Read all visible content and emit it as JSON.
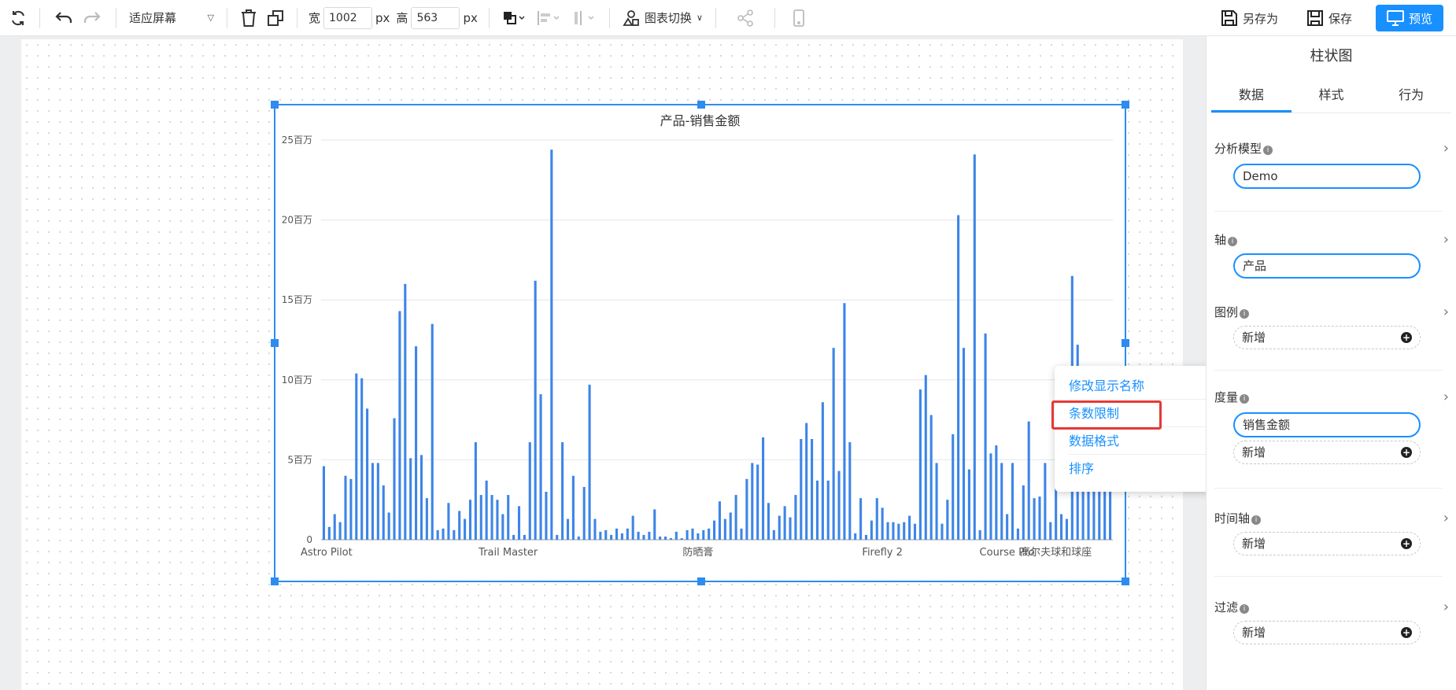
{
  "toolbar": {
    "fit_select": "适应屏幕",
    "width_label": "宽",
    "width_value": "1002",
    "px1": "px",
    "height_label": "高",
    "height_value": "563",
    "px2": "px",
    "chart_switch": "图表切换",
    "save_as": "另存为",
    "save": "保存",
    "preview": "预览"
  },
  "context_menu": {
    "items": [
      "修改显示名称",
      "条数限制",
      "数据格式",
      "排序"
    ]
  },
  "panel": {
    "title": "柱状图",
    "tabs": [
      "数据",
      "样式",
      "行为"
    ],
    "model_label": "分析模型",
    "model_value": "Demo",
    "axis_label": "轴",
    "axis_value": "产品",
    "legend_label": "图例",
    "legend_add": "新增",
    "measure_label": "度量",
    "measure_value": "销售金额",
    "measure_add": "新增",
    "time_label": "时间轴",
    "time_add": "新增",
    "filter_label": "过滤",
    "filter_add": "新增"
  },
  "colors": {
    "accent": "#1890ff",
    "bar": "#3d85e8",
    "highlight": "#e53935"
  },
  "chart_data": {
    "type": "bar",
    "title": "产品-销售金额",
    "ylim": [
      0,
      25
    ],
    "yticks": [
      "0",
      "5百万",
      "10百万",
      "15百万",
      "20百万",
      "25百万"
    ],
    "xtick_labels": [
      "Astro Pilot",
      "Trail Master",
      "防晒膏",
      "Firefly 2",
      "Course Pro",
      "高尔夫球和球座"
    ],
    "xtick_index": [
      0,
      34,
      69,
      103,
      126,
      135
    ],
    "values": [
      4.6,
      0.8,
      1.6,
      1.1,
      4.0,
      3.8,
      10.4,
      10.1,
      8.2,
      4.8,
      4.8,
      3.4,
      1.7,
      7.6,
      14.3,
      16.0,
      5.1,
      12.1,
      5.3,
      2.6,
      13.5,
      0.6,
      0.7,
      2.3,
      0.6,
      1.8,
      1.3,
      2.5,
      6.1,
      2.8,
      3.7,
      2.8,
      2.5,
      1.6,
      2.8,
      0.3,
      2.1,
      0.3,
      6.1,
      16.2,
      9.1,
      3.0,
      24.4,
      0.3,
      6.1,
      1.3,
      4.0,
      0.2,
      3.3,
      9.7,
      1.3,
      0.5,
      0.6,
      0.3,
      0.7,
      0.4,
      0.7,
      1.5,
      0.5,
      0.3,
      0.5,
      1.9,
      0.2,
      0.2,
      0.1,
      0.5,
      0.1,
      0.6,
      0.7,
      0.4,
      0.6,
      0.7,
      1.2,
      2.4,
      1.3,
      1.7,
      2.8,
      0.7,
      3.8,
      4.8,
      4.7,
      6.4,
      2.3,
      0.6,
      1.5,
      2.1,
      1.4,
      2.8,
      6.3,
      7.3,
      6.3,
      3.7,
      8.6,
      3.7,
      12.0,
      4.3,
      14.8,
      6.1,
      0.4,
      2.6,
      0.3,
      1.2,
      2.6,
      2.0,
      1.1,
      1.1,
      1.0,
      1.1,
      1.5,
      1.0,
      9.4,
      10.3,
      7.8,
      4.8,
      1.0,
      2.5,
      6.6,
      20.3,
      12.0,
      4.4,
      24.1,
      0.6,
      12.9,
      5.4,
      5.9,
      4.8,
      1.6,
      4.8,
      0.7,
      3.4,
      7.4,
      2.6,
      2.7,
      4.8,
      1.1,
      6.7,
      1.6,
      1.3,
      16.5,
      12.2,
      9.5,
      6.6,
      6.3,
      5.3,
      4.8,
      4.0
    ]
  }
}
